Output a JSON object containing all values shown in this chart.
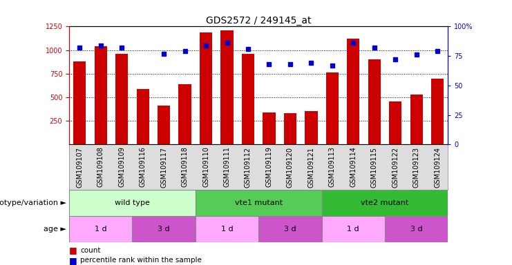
{
  "title": "GDS2572 / 249145_at",
  "samples": [
    "GSM109107",
    "GSM109108",
    "GSM109109",
    "GSM109116",
    "GSM109117",
    "GSM109118",
    "GSM109110",
    "GSM109111",
    "GSM109112",
    "GSM109119",
    "GSM109120",
    "GSM109121",
    "GSM109113",
    "GSM109114",
    "GSM109115",
    "GSM109122",
    "GSM109123",
    "GSM109124"
  ],
  "counts": [
    880,
    1040,
    960,
    590,
    415,
    640,
    1185,
    1210,
    960,
    335,
    330,
    355,
    760,
    1120,
    905,
    455,
    530,
    700
  ],
  "percentiles": [
    82,
    84,
    82,
    null,
    77,
    79,
    84,
    86,
    81,
    68,
    68,
    69,
    67,
    86,
    82,
    72,
    76,
    79
  ],
  "ylim_left": [
    0,
    1250
  ],
  "yticks_left": [
    250,
    500,
    750,
    1000,
    1250
  ],
  "yticks_right": [
    0,
    25,
    50,
    75,
    100
  ],
  "bar_color": "#cc0000",
  "dot_color": "#0000cc",
  "bar_width": 0.6,
  "genotype_groups": [
    {
      "label": "wild type",
      "start": 0,
      "end": 6,
      "color": "#ccffcc"
    },
    {
      "label": "vte1 mutant",
      "start": 6,
      "end": 12,
      "color": "#55cc55"
    },
    {
      "label": "vte2 mutant",
      "start": 12,
      "end": 18,
      "color": "#33bb33"
    }
  ],
  "age_groups": [
    {
      "label": "1 d",
      "start": 0,
      "end": 3,
      "color": "#ffaaff"
    },
    {
      "label": "3 d",
      "start": 3,
      "end": 6,
      "color": "#cc55cc"
    },
    {
      "label": "1 d",
      "start": 6,
      "end": 9,
      "color": "#ffaaff"
    },
    {
      "label": "3 d",
      "start": 9,
      "end": 12,
      "color": "#cc55cc"
    },
    {
      "label": "1 d",
      "start": 12,
      "end": 15,
      "color": "#ffaaff"
    },
    {
      "label": "3 d",
      "start": 15,
      "end": 18,
      "color": "#cc55cc"
    }
  ],
  "left_color": "#cc0000",
  "right_color": "#0000cc",
  "grid_yticks": [
    250,
    500,
    750,
    1000
  ],
  "percentile_scale": 12.5,
  "tick_bg_color": "#dddddd",
  "row_label_fontsize": 8,
  "tick_fontsize": 7,
  "group_fontsize": 8,
  "title_fontsize": 10
}
